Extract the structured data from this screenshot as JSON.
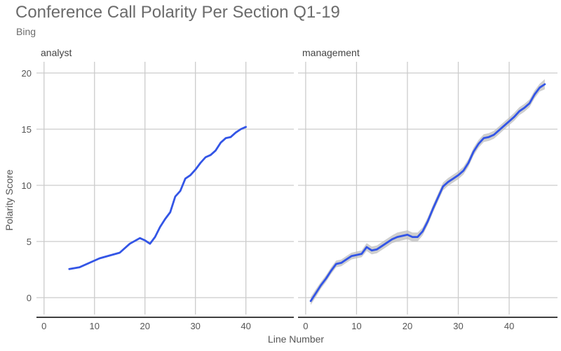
{
  "chart_data": {
    "type": "line",
    "title": "Conference Call Polarity Per Section Q1-19",
    "subtitle": "Bing",
    "xlabel": "Line Number",
    "ylabel": "Polarity Score",
    "grid": true,
    "xlim": [
      -1.5,
      49.5
    ],
    "ylim": [
      -1.5,
      21
    ],
    "x_ticks": [
      0,
      10,
      20,
      30,
      40
    ],
    "y_ticks": [
      0,
      5,
      10,
      15,
      20
    ],
    "panels": [
      {
        "name": "analyst",
        "label": "analyst",
        "series": [
          {
            "color": "#3355e6",
            "x": [
              5,
              7,
              9,
              11,
              13,
              15,
              17,
              19,
              20,
              21,
              22,
              23,
              24,
              25,
              26,
              27,
              28,
              29,
              30,
              31,
              32,
              33,
              34,
              35,
              36,
              37,
              38,
              39,
              40
            ],
            "y": [
              2.55,
              2.7,
              3.1,
              3.5,
              3.75,
              4.0,
              4.8,
              5.3,
              5.1,
              4.8,
              5.4,
              6.3,
              7.0,
              7.6,
              9.0,
              9.5,
              10.6,
              10.9,
              11.4,
              12.0,
              12.5,
              12.7,
              13.1,
              13.8,
              14.2,
              14.3,
              14.7,
              15.0,
              15.2
            ]
          }
        ]
      },
      {
        "name": "management",
        "label": "management",
        "series": [
          {
            "color": "#3355e6",
            "band_color": "#bdbdbd",
            "x": [
              1,
              2,
              3,
              4,
              5,
              6,
              7,
              8,
              9,
              10,
              11,
              12,
              13,
              14,
              15,
              16,
              17,
              18,
              19,
              20,
              21,
              22,
              23,
              24,
              25,
              26,
              27,
              28,
              29,
              30,
              31,
              32,
              33,
              34,
              35,
              36,
              37,
              38,
              39,
              40,
              41,
              42,
              43,
              44,
              45,
              46,
              47
            ],
            "y": [
              -0.3,
              0.4,
              1.1,
              1.7,
              2.4,
              3.0,
              3.1,
              3.4,
              3.7,
              3.8,
              3.9,
              4.5,
              4.2,
              4.3,
              4.6,
              4.9,
              5.2,
              5.4,
              5.5,
              5.6,
              5.4,
              5.4,
              5.9,
              6.8,
              7.9,
              8.9,
              9.9,
              10.3,
              10.6,
              10.9,
              11.3,
              12.0,
              13.0,
              13.7,
              14.2,
              14.3,
              14.5,
              14.9,
              15.3,
              15.7,
              16.1,
              16.6,
              16.9,
              17.3,
              18.1,
              18.7,
              19.0
            ],
            "band": [
              0.35,
              0.35,
              0.3,
              0.3,
              0.3,
              0.3,
              0.3,
              0.3,
              0.3,
              0.3,
              0.3,
              0.35,
              0.35,
              0.35,
              0.35,
              0.35,
              0.35,
              0.4,
              0.4,
              0.4,
              0.4,
              0.4,
              0.35,
              0.35,
              0.35,
              0.35,
              0.35,
              0.35,
              0.35,
              0.35,
              0.35,
              0.35,
              0.35,
              0.35,
              0.35,
              0.35,
              0.35,
              0.35,
              0.35,
              0.35,
              0.35,
              0.35,
              0.35,
              0.35,
              0.35,
              0.35,
              0.45
            ]
          }
        ]
      }
    ]
  }
}
